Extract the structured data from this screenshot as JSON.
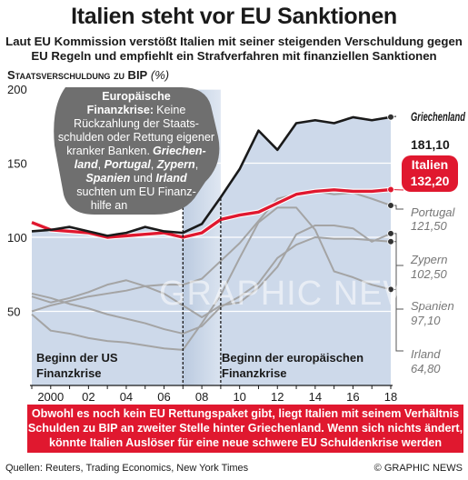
{
  "header": {
    "title": "Italien steht vor EU Sanktionen",
    "subtitle_line1": "Laut EU Kommission verstößt Italien mit seiner steigenden Verschuldung gegen",
    "subtitle_line2": "EU Regeln  und empfiehlt ein  Strafverfahren mit finanziellen Sanktionen"
  },
  "chart_data": {
    "type": "line",
    "ylabel": "Staatsverschuldung zu BIP",
    "ylabel_unit": "(%)",
    "x": [
      1999,
      2000,
      2001,
      2002,
      2003,
      2004,
      2005,
      2006,
      2007,
      2008,
      2009,
      2010,
      2011,
      2012,
      2013,
      2014,
      2015,
      2016,
      2017,
      2018
    ],
    "xticks": [
      2000,
      2002,
      2004,
      2006,
      2008,
      2010,
      2012,
      2014,
      2016,
      2018
    ],
    "xtick_labels": [
      "2000",
      "02",
      "04",
      "06",
      "08",
      "10",
      "12",
      "14",
      "16",
      "18"
    ],
    "ylim": [
      0,
      200
    ],
    "yticks": [
      0,
      50,
      100,
      150,
      200
    ],
    "series": [
      {
        "name": "Griechenland",
        "end_label": "181,10",
        "color": "#1a1a1a",
        "values": [
          104,
          105,
          107,
          104,
          101,
          103,
          107,
          104,
          103,
          109,
          127,
          146,
          172,
          159,
          177,
          179,
          177,
          181,
          179,
          181.1
        ]
      },
      {
        "name": "Italien",
        "end_label": "132,20",
        "color": "#e0182f",
        "values": [
          110,
          105,
          104,
          103,
          100,
          101,
          102,
          103,
          100,
          103,
          112,
          115,
          117,
          123,
          129,
          131,
          132,
          131,
          131,
          132.2
        ]
      },
      {
        "name": "Portugal",
        "end_label": "121,50",
        "color": "#9a9a9a",
        "values": [
          50,
          54,
          57,
          60,
          62,
          64,
          67,
          68,
          68,
          72,
          84,
          96,
          111,
          126,
          129,
          131,
          129,
          130,
          126,
          121.5
        ]
      },
      {
        "name": "Zypern",
        "end_label": "102,50",
        "color": "#9a9a9a",
        "values": [
          60,
          56,
          59,
          63,
          68,
          71,
          67,
          62,
          54,
          46,
          54,
          56,
          66,
          80,
          102,
          108,
          108,
          106,
          97,
          102.5
        ]
      },
      {
        "name": "Spanien",
        "end_label": "97,10",
        "color": "#9a9a9a",
        "values": [
          62,
          59,
          55,
          52,
          48,
          45,
          42,
          38,
          35,
          40,
          53,
          60,
          69,
          86,
          95,
          100,
          99,
          99,
          98,
          97.1
        ]
      },
      {
        "name": "Irland",
        "end_label": "64,80",
        "color": "#9a9a9a",
        "values": [
          48,
          37,
          35,
          32,
          30,
          29,
          27,
          25,
          24,
          42,
          61,
          86,
          110,
          120,
          120,
          105,
          77,
          73,
          68,
          64.8
        ]
      }
    ],
    "annotations": {
      "us_crisis": {
        "x": 2007,
        "label_line1": "Beginn der US",
        "label_line2": "Finanzkrise"
      },
      "eu_crisis": {
        "x": 2009,
        "label_line1": "Beginn der europäischen",
        "label_line2": "Finanzkrise"
      }
    },
    "callout": {
      "heading_line1": "Europäische",
      "heading_line2": "Finanzkrise:",
      "line1": "Keine",
      "line2": "Rückzahlung der Staats-",
      "line3": "schulden oder Rettung eigener",
      "line4": "kranker Banken.",
      "line4_bold": "Griechen-",
      "line5_bold": "land",
      "line5_sep1": ", ",
      "line5_bold2": "Portugal",
      "line5_sep2": ", ",
      "line5_bold3": "Zypern",
      "line5_sep3": ",",
      "line6_bold": "Spanien",
      "line6_mid": " und ",
      "line6_bold2": "Irland",
      "line7": "suchten um EU Finanz-",
      "line8": "hilfe an"
    }
  },
  "footer": {
    "note_line1": "Obwohl es noch kein EU Rettungspaket gibt, liegt Italien mit seinem Verhältnis",
    "note_line2": "Schulden zu BIP an zweiter Stelle hinter Griechenland. Wenn sich nichts ändert,",
    "note_line3": "könnte Italien Auslöser für eine neue schwere EU Schuldenkrise werden",
    "sources": "Quellen: Reuters, Trading Economics, New York Times",
    "credit": "© GRAPHIC NEWS",
    "watermark": "GRAPHIC NEWS"
  },
  "colors": {
    "accent_red": "#e0182f",
    "panel_blue": "#cdd9ea",
    "shade_blue": "#b9c9df",
    "callout_gray": "#6f6f6f"
  }
}
